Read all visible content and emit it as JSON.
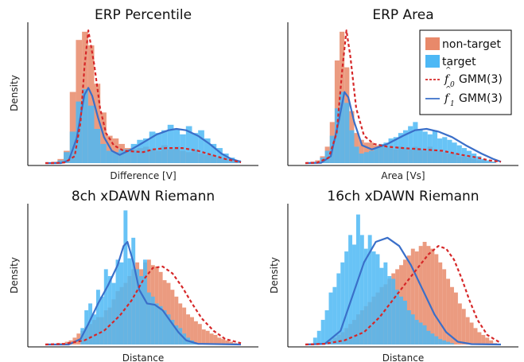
{
  "colors": {
    "nontarget_fill": "#e8896a",
    "target_fill": "#4db8f5",
    "nontarget_curve": "#d62728",
    "target_curve": "#3a6fc9",
    "axis": "#000000"
  },
  "legend": {
    "nontarget": "non-target",
    "target": "target",
    "f0_label": "GMM(3)",
    "f1_label": "GMM(3)",
    "f0_symbol": "f",
    "f0_sub": "0",
    "f1_symbol": "f",
    "f1_sub": "1",
    "placement": "top-right of ERP Area panel"
  },
  "chart_data": [
    {
      "type": "bar",
      "title": "ERP Percentile",
      "xlabel": "Difference [V]",
      "ylabel": "Density",
      "x_tick_labels": "none",
      "y_tick_labels": "none",
      "xlim": [
        0,
        1
      ],
      "ylim": [
        0,
        1
      ],
      "bins": 32,
      "nontarget_hist": [
        0.0,
        0.01,
        0.03,
        0.09,
        0.52,
        0.9,
        0.96,
        0.86,
        0.58,
        0.37,
        0.2,
        0.18,
        0.14,
        0.11,
        0.1,
        0.11,
        0.12,
        0.1,
        0.09,
        0.13,
        0.1,
        0.12,
        0.09,
        0.08,
        0.1,
        0.07,
        0.06,
        0.06,
        0.04,
        0.03,
        0.02,
        0.01
      ],
      "target_hist": [
        0.0,
        0.0,
        0.02,
        0.08,
        0.23,
        0.45,
        0.54,
        0.42,
        0.25,
        0.14,
        0.09,
        0.08,
        0.1,
        0.1,
        0.14,
        0.17,
        0.18,
        0.23,
        0.22,
        0.24,
        0.28,
        0.25,
        0.21,
        0.27,
        0.22,
        0.24,
        0.18,
        0.14,
        0.11,
        0.07,
        0.04,
        0.02
      ],
      "nontarget_curve": [
        [
          0,
          0
        ],
        [
          0.05,
          0
        ],
        [
          0.1,
          0.005
        ],
        [
          0.15,
          0.05
        ],
        [
          0.18,
          0.3
        ],
        [
          0.2,
          0.7
        ],
        [
          0.22,
          0.97
        ],
        [
          0.25,
          0.72
        ],
        [
          0.28,
          0.4
        ],
        [
          0.31,
          0.22
        ],
        [
          0.35,
          0.13
        ],
        [
          0.4,
          0.09
        ],
        [
          0.5,
          0.08
        ],
        [
          0.55,
          0.1
        ],
        [
          0.62,
          0.11
        ],
        [
          0.7,
          0.11
        ],
        [
          0.78,
          0.09
        ],
        [
          0.85,
          0.06
        ],
        [
          0.92,
          0.03
        ],
        [
          1,
          0.005
        ]
      ],
      "target_curve": [
        [
          0,
          0
        ],
        [
          0.08,
          0
        ],
        [
          0.12,
          0.02
        ],
        [
          0.16,
          0.18
        ],
        [
          0.19,
          0.42
        ],
        [
          0.2,
          0.5
        ],
        [
          0.22,
          0.55
        ],
        [
          0.24,
          0.49
        ],
        [
          0.27,
          0.33
        ],
        [
          0.3,
          0.19
        ],
        [
          0.34,
          0.09
        ],
        [
          0.38,
          0.06
        ],
        [
          0.44,
          0.1
        ],
        [
          0.5,
          0.15
        ],
        [
          0.57,
          0.21
        ],
        [
          0.63,
          0.24
        ],
        [
          0.67,
          0.25
        ],
        [
          0.72,
          0.24
        ],
        [
          0.78,
          0.2
        ],
        [
          0.84,
          0.14
        ],
        [
          0.9,
          0.07
        ],
        [
          0.95,
          0.03
        ],
        [
          1,
          0.01
        ]
      ]
    },
    {
      "type": "bar",
      "title": "ERP Area",
      "xlabel": "Area [Vs]",
      "ylabel": "",
      "x_tick_labels": "none",
      "y_tick_labels": "none",
      "xlim": [
        0,
        1
      ],
      "ylim": [
        0,
        1
      ],
      "bins": 40,
      "nontarget_hist": [
        0.0,
        0.01,
        0.02,
        0.05,
        0.12,
        0.3,
        0.75,
        0.96,
        0.7,
        0.38,
        0.22,
        0.17,
        0.15,
        0.15,
        0.13,
        0.12,
        0.12,
        0.11,
        0.1,
        0.12,
        0.11,
        0.1,
        0.12,
        0.1,
        0.09,
        0.12,
        0.1,
        0.09,
        0.08,
        0.07,
        0.07,
        0.05,
        0.05,
        0.04,
        0.03,
        0.02,
        0.02,
        0.01,
        0.01,
        0.0
      ],
      "target_hist": [
        0.0,
        0.0,
        0.01,
        0.04,
        0.09,
        0.2,
        0.4,
        0.52,
        0.44,
        0.24,
        0.12,
        0.07,
        0.08,
        0.09,
        0.11,
        0.14,
        0.15,
        0.18,
        0.19,
        0.22,
        0.24,
        0.27,
        0.3,
        0.25,
        0.23,
        0.21,
        0.24,
        0.18,
        0.19,
        0.17,
        0.15,
        0.13,
        0.11,
        0.09,
        0.07,
        0.05,
        0.03,
        0.02,
        0.01,
        0.0
      ],
      "nontarget_curve": [
        [
          0,
          0
        ],
        [
          0.06,
          0.003
        ],
        [
          0.12,
          0.04
        ],
        [
          0.16,
          0.22
        ],
        [
          0.19,
          0.7
        ],
        [
          0.21,
          0.97
        ],
        [
          0.23,
          0.78
        ],
        [
          0.26,
          0.4
        ],
        [
          0.3,
          0.2
        ],
        [
          0.35,
          0.14
        ],
        [
          0.42,
          0.12
        ],
        [
          0.5,
          0.11
        ],
        [
          0.6,
          0.1
        ],
        [
          0.7,
          0.09
        ],
        [
          0.8,
          0.06
        ],
        [
          0.88,
          0.04
        ],
        [
          0.94,
          0.02
        ],
        [
          1,
          0.01
        ]
      ],
      "target_curve": [
        [
          0,
          0
        ],
        [
          0.08,
          0.002
        ],
        [
          0.13,
          0.05
        ],
        [
          0.17,
          0.3
        ],
        [
          0.2,
          0.52
        ],
        [
          0.22,
          0.48
        ],
        [
          0.25,
          0.3
        ],
        [
          0.29,
          0.13
        ],
        [
          0.34,
          0.1
        ],
        [
          0.42,
          0.14
        ],
        [
          0.5,
          0.2
        ],
        [
          0.56,
          0.24
        ],
        [
          0.62,
          0.25
        ],
        [
          0.68,
          0.23
        ],
        [
          0.75,
          0.19
        ],
        [
          0.82,
          0.13
        ],
        [
          0.9,
          0.07
        ],
        [
          0.96,
          0.03
        ],
        [
          1,
          0.01
        ]
      ]
    },
    {
      "type": "bar",
      "title": "8ch xDAWN Riemann",
      "xlabel": "Distance",
      "ylabel": "Density",
      "x_tick_labels": "none",
      "y_tick_labels": "none",
      "xlim": [
        0,
        1
      ],
      "ylim": [
        0,
        1
      ],
      "bins": 50,
      "nontarget_hist": [
        0.0,
        0.0,
        0.0,
        0.01,
        0.01,
        0.02,
        0.03,
        0.05,
        0.08,
        0.1,
        0.13,
        0.15,
        0.18,
        0.2,
        0.2,
        0.25,
        0.27,
        0.33,
        0.39,
        0.42,
        0.45,
        0.5,
        0.55,
        0.6,
        0.55,
        0.6,
        0.62,
        0.58,
        0.57,
        0.53,
        0.47,
        0.45,
        0.4,
        0.35,
        0.3,
        0.27,
        0.22,
        0.2,
        0.17,
        0.15,
        0.11,
        0.1,
        0.08,
        0.07,
        0.05,
        0.04,
        0.03,
        0.02,
        0.01,
        0.0
      ],
      "target_hist": [
        0.0,
        0.0,
        0.0,
        0.0,
        0.0,
        0.0,
        0.0,
        0.0,
        0.0,
        0.12,
        0.25,
        0.3,
        0.22,
        0.4,
        0.35,
        0.55,
        0.5,
        0.45,
        0.62,
        0.6,
        0.98,
        0.63,
        0.78,
        0.55,
        0.5,
        0.62,
        0.38,
        0.35,
        0.3,
        0.28,
        0.25,
        0.22,
        0.18,
        0.14,
        0.12,
        0.08,
        0.05,
        0.03,
        0.01,
        0.0,
        0.0,
        0.0,
        0.0,
        0.0,
        0.0,
        0.0,
        0.0,
        0.0,
        0.0,
        0.0
      ],
      "nontarget_curve": [
        [
          0,
          0
        ],
        [
          0.1,
          0.005
        ],
        [
          0.2,
          0.03
        ],
        [
          0.3,
          0.1
        ],
        [
          0.38,
          0.21
        ],
        [
          0.44,
          0.32
        ],
        [
          0.5,
          0.47
        ],
        [
          0.55,
          0.56
        ],
        [
          0.6,
          0.57
        ],
        [
          0.65,
          0.52
        ],
        [
          0.7,
          0.42
        ],
        [
          0.75,
          0.3
        ],
        [
          0.8,
          0.19
        ],
        [
          0.86,
          0.1
        ],
        [
          0.92,
          0.04
        ],
        [
          1,
          0.01
        ]
      ],
      "target_curve": [
        [
          0,
          0
        ],
        [
          0.12,
          0
        ],
        [
          0.18,
          0.04
        ],
        [
          0.22,
          0.15
        ],
        [
          0.27,
          0.3
        ],
        [
          0.32,
          0.43
        ],
        [
          0.37,
          0.58
        ],
        [
          0.4,
          0.72
        ],
        [
          0.42,
          0.75
        ],
        [
          0.45,
          0.6
        ],
        [
          0.48,
          0.4
        ],
        [
          0.52,
          0.3
        ],
        [
          0.56,
          0.29
        ],
        [
          0.6,
          0.25
        ],
        [
          0.64,
          0.17
        ],
        [
          0.68,
          0.09
        ],
        [
          0.72,
          0.03
        ],
        [
          0.78,
          0.005
        ],
        [
          1,
          0
        ]
      ]
    },
    {
      "type": "bar",
      "title": "16ch xDAWN Riemann",
      "xlabel": "Distance",
      "ylabel": "Density",
      "x_tick_labels": "none",
      "y_tick_labels": "none",
      "xlim": [
        0,
        1
      ],
      "ylim": [
        0,
        1
      ],
      "bins": 50,
      "nontarget_hist": [
        0.0,
        0.0,
        0.0,
        0.01,
        0.01,
        0.02,
        0.03,
        0.05,
        0.07,
        0.09,
        0.12,
        0.15,
        0.18,
        0.22,
        0.25,
        0.28,
        0.31,
        0.35,
        0.38,
        0.42,
        0.44,
        0.48,
        0.52,
        0.55,
        0.58,
        0.62,
        0.65,
        0.7,
        0.68,
        0.72,
        0.75,
        0.72,
        0.7,
        0.66,
        0.6,
        0.55,
        0.48,
        0.42,
        0.38,
        0.3,
        0.26,
        0.2,
        0.16,
        0.12,
        0.09,
        0.07,
        0.05,
        0.03,
        0.01,
        0.0
      ],
      "target_hist": [
        0.0,
        0.0,
        0.05,
        0.1,
        0.18,
        0.25,
        0.38,
        0.42,
        0.52,
        0.6,
        0.68,
        0.8,
        0.73,
        0.95,
        0.8,
        0.7,
        0.8,
        0.68,
        0.66,
        0.56,
        0.6,
        0.5,
        0.48,
        0.4,
        0.35,
        0.32,
        0.25,
        0.22,
        0.18,
        0.16,
        0.14,
        0.1,
        0.08,
        0.06,
        0.04,
        0.03,
        0.02,
        0.01,
        0.0,
        0.0,
        0.0,
        0.0,
        0.0,
        0.0,
        0.0,
        0.0,
        0.0,
        0.0,
        0.0,
        0.0
      ],
      "nontarget_curve": [
        [
          0,
          0
        ],
        [
          0.1,
          0.005
        ],
        [
          0.2,
          0.03
        ],
        [
          0.3,
          0.09
        ],
        [
          0.38,
          0.2
        ],
        [
          0.45,
          0.33
        ],
        [
          0.52,
          0.46
        ],
        [
          0.58,
          0.57
        ],
        [
          0.63,
          0.66
        ],
        [
          0.68,
          0.72
        ],
        [
          0.72,
          0.7
        ],
        [
          0.76,
          0.62
        ],
        [
          0.8,
          0.48
        ],
        [
          0.84,
          0.32
        ],
        [
          0.88,
          0.18
        ],
        [
          0.93,
          0.07
        ],
        [
          1,
          0.01
        ]
      ],
      "target_curve": [
        [
          0,
          0
        ],
        [
          0.1,
          0.005
        ],
        [
          0.18,
          0.1
        ],
        [
          0.24,
          0.35
        ],
        [
          0.3,
          0.6
        ],
        [
          0.36,
          0.75
        ],
        [
          0.42,
          0.78
        ],
        [
          0.48,
          0.72
        ],
        [
          0.54,
          0.58
        ],
        [
          0.6,
          0.4
        ],
        [
          0.66,
          0.22
        ],
        [
          0.72,
          0.09
        ],
        [
          0.78,
          0.02
        ],
        [
          0.85,
          0.003
        ],
        [
          1,
          0
        ]
      ]
    }
  ]
}
